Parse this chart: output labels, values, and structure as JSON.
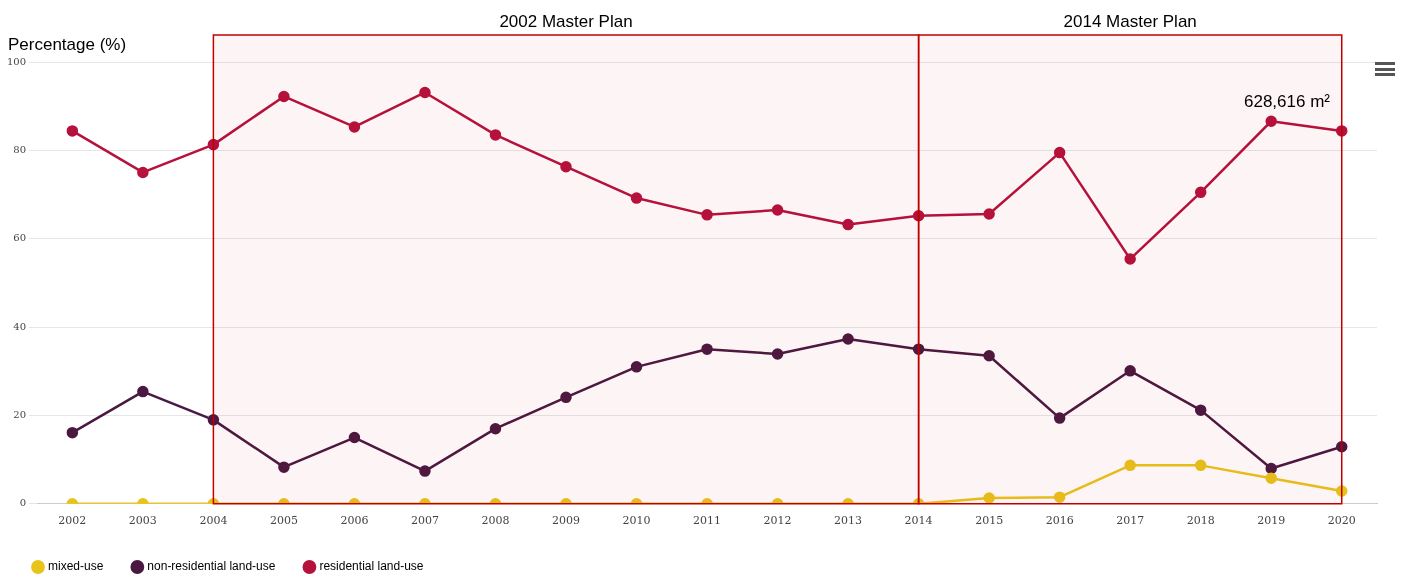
{
  "chart_data": {
    "type": "line",
    "ylabel": "Percentage (%)",
    "categories": [
      "2002",
      "2003",
      "2004",
      "2005",
      "2006",
      "2007",
      "2008",
      "2009",
      "2010",
      "2011",
      "2012",
      "2013",
      "2014",
      "2015",
      "2016",
      "2017",
      "2018",
      "2019",
      "2020"
    ],
    "series": [
      {
        "name": "mixed-use",
        "color": "#e8c31c",
        "values": [
          0,
          0,
          0,
          0,
          0,
          0,
          0,
          0,
          0,
          0,
          0,
          0,
          0,
          1.3,
          1.5,
          8.7,
          8.7,
          5.8,
          2.9
        ]
      },
      {
        "name": "non-residential land-use",
        "color": "#4a1942",
        "values": [
          16.1,
          25.4,
          19,
          8.3,
          15,
          7.4,
          17,
          24.1,
          31,
          35,
          33.9,
          37.3,
          35,
          33.5,
          19.4,
          30.1,
          21.2,
          8,
          12.9
        ]
      },
      {
        "name": "residential land-use",
        "color": "#b5123e",
        "values": [
          84.4,
          75,
          81.3,
          92.2,
          85.3,
          93.1,
          83.5,
          76.3,
          69.2,
          65.4,
          66.5,
          63.2,
          65.2,
          65.6,
          79.5,
          55.4,
          70.5,
          86.6,
          84.4
        ]
      }
    ],
    "ylim": [
      0,
      100
    ],
    "yticks": [
      0,
      20,
      40,
      60,
      80,
      100
    ],
    "grid": "y",
    "legend": "bottom left",
    "marker": "circle",
    "bands": [
      {
        "axis": "x",
        "from": "2004",
        "to": "2014",
        "label": "2002 Master Plan",
        "color": "#c00000"
      },
      {
        "axis": "x",
        "from": "2014",
        "to": "2020",
        "label": "2014 Master Plan",
        "color": "#c00000"
      }
    ],
    "annotations": [
      "628,616 m²"
    ]
  }
}
